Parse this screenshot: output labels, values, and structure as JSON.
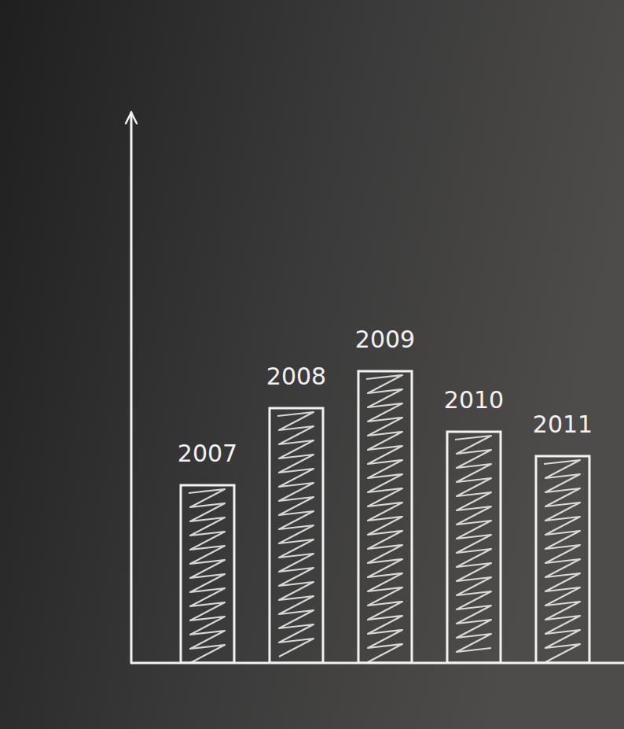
{
  "chart_data": {
    "type": "bar",
    "categories": [
      "2007",
      "2008",
      "2009",
      "2010",
      "2011"
    ],
    "values": [
      226,
      324,
      371,
      294,
      263
    ],
    "ylim": [
      0,
      700
    ],
    "tick_labels": "x",
    "color": "#f2f2f2"
  }
}
